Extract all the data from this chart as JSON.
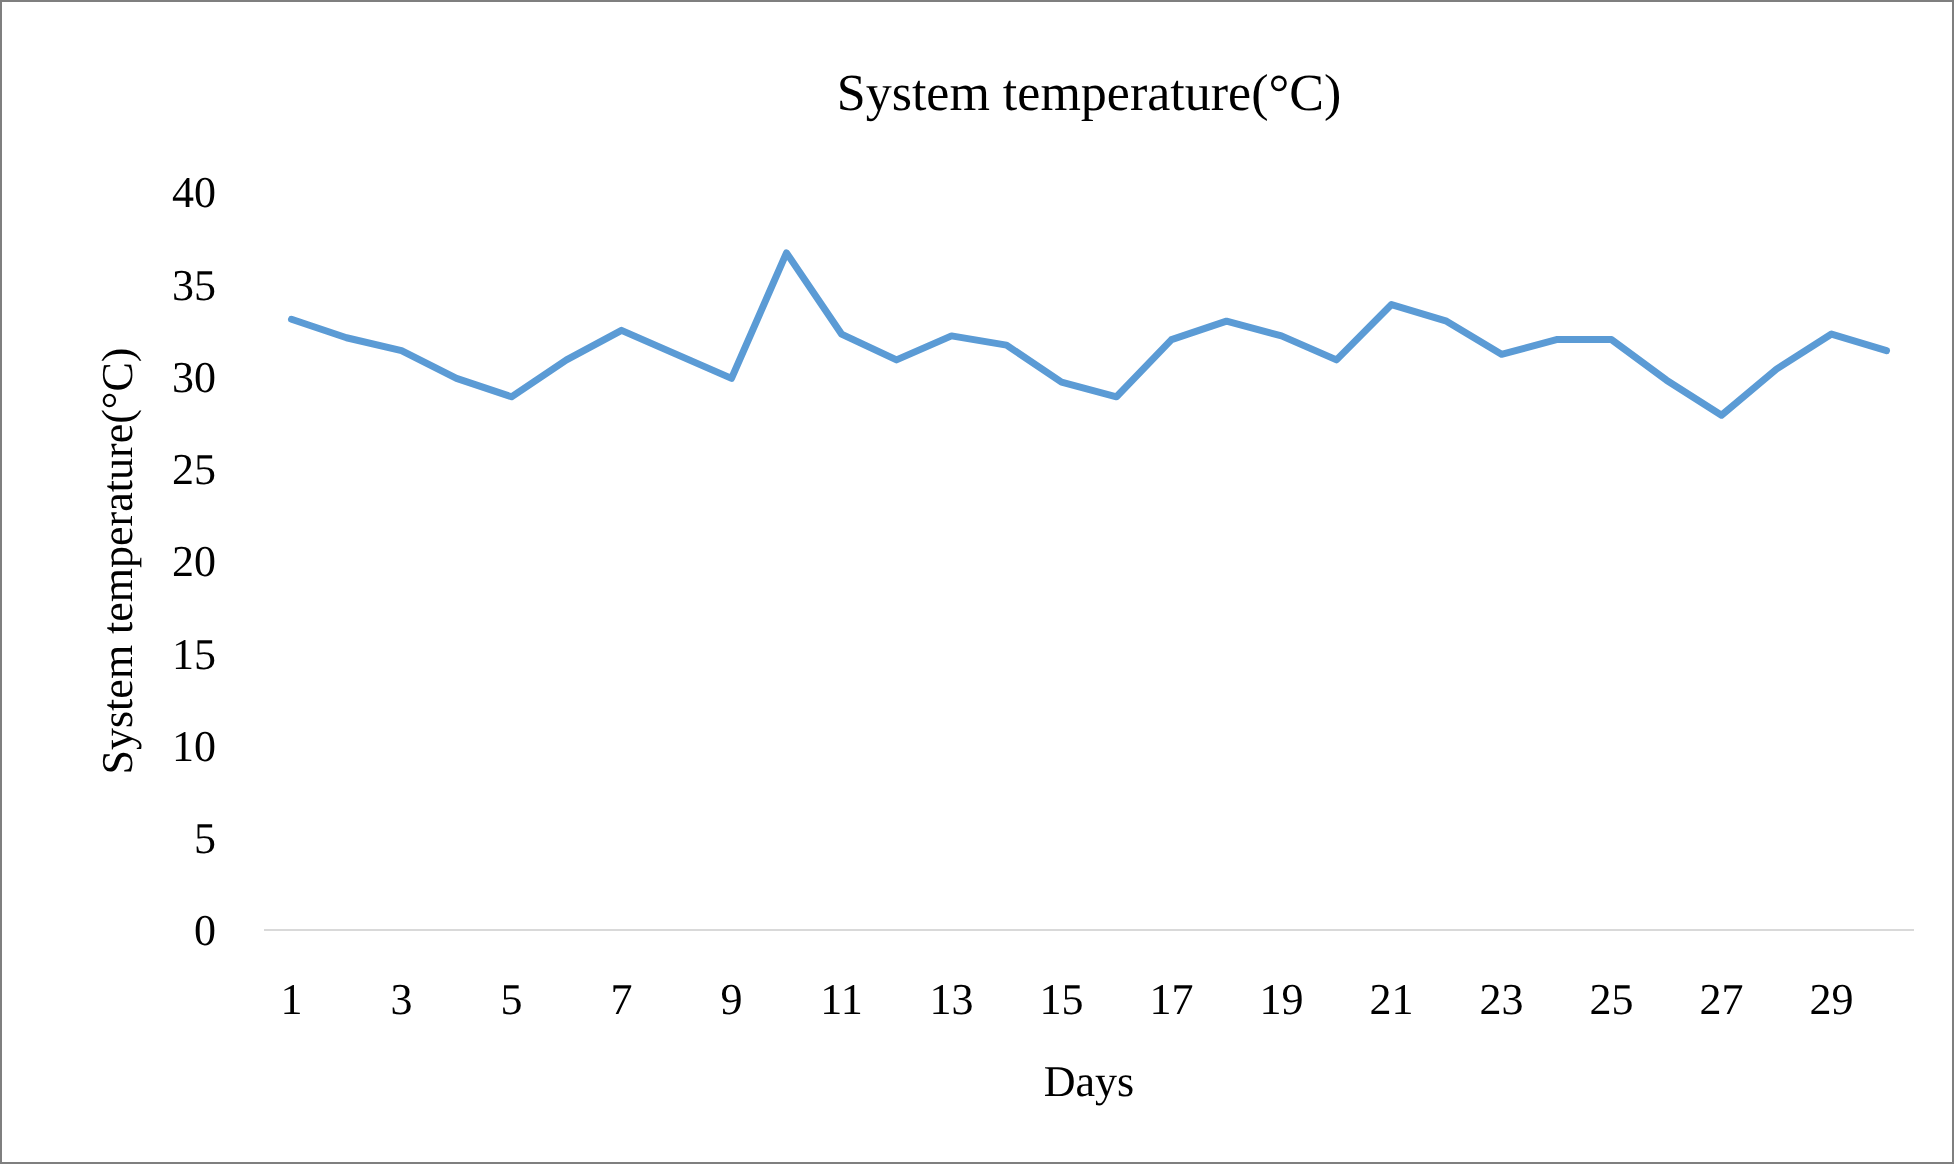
{
  "chart_data": {
    "type": "line",
    "title": "System temperature(°C)",
    "xlabel": "Days",
    "ylabel": "System temperature(°C)",
    "x": [
      1,
      2,
      3,
      4,
      5,
      6,
      7,
      8,
      9,
      10,
      11,
      12,
      13,
      14,
      15,
      16,
      17,
      18,
      19,
      20,
      21,
      22,
      23,
      24,
      25,
      26,
      27,
      28,
      29,
      30
    ],
    "xlim": [
      0.5,
      30.5
    ],
    "xticks": [
      1,
      3,
      5,
      7,
      9,
      11,
      13,
      15,
      17,
      19,
      21,
      23,
      25,
      27,
      29
    ],
    "series": [
      {
        "color": "#5b9bd5",
        "values": [
          33.1,
          32.1,
          31.4,
          29.9,
          28.9,
          30.9,
          32.5,
          31.2,
          29.9,
          36.7,
          32.3,
          30.9,
          32.2,
          31.7,
          29.7,
          28.9,
          32.0,
          33.0,
          32.2,
          30.9,
          33.9,
          33.0,
          31.2,
          32.0,
          32.0,
          29.8,
          27.9,
          30.4,
          32.3,
          31.4
        ]
      }
    ],
    "ylim": [
      0,
      40
    ],
    "yticks": [
      0,
      5,
      10,
      15,
      20,
      25,
      30,
      35,
      40
    ],
    "grid": false,
    "marker": "none",
    "line_style": "solid"
  }
}
